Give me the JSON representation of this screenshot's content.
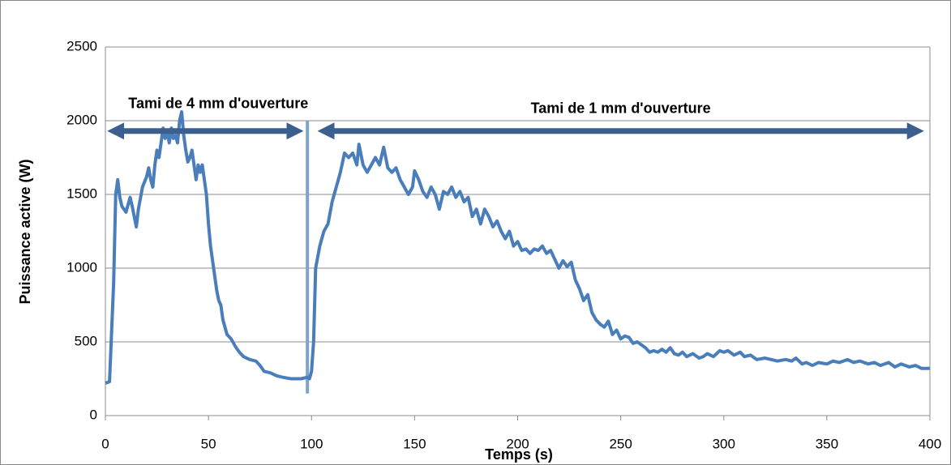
{
  "chart_data": {
    "type": "line",
    "xlabel": "Temps (s)",
    "ylabel": "Puissance active (W)",
    "xlim": [
      0,
      400
    ],
    "ylim": [
      0,
      2500
    ],
    "xticks": [
      0,
      50,
      100,
      150,
      200,
      250,
      300,
      350,
      400
    ],
    "yticks": [
      0,
      500,
      1000,
      1500,
      2000,
      2500
    ],
    "grid": true,
    "annotations": [
      {
        "text": "Tami de 4 mm d'ouverture",
        "x": [
          5,
          92
        ],
        "y": 1930,
        "color": "#3b5f8e"
      },
      {
        "text": "Tami de 1 mm d'ouverture",
        "x": [
          107,
          393
        ],
        "y": 1930,
        "color": "#3b5f8e"
      }
    ],
    "separator": {
      "x": 98,
      "y": [
        150,
        2000
      ],
      "color": "#7fa3cf"
    },
    "series": [
      {
        "name": "Puissance active",
        "color": "#4a7ebb",
        "x": [
          0,
          2,
          4,
          5,
          6,
          7,
          8,
          10,
          12,
          13,
          15,
          16,
          18,
          20,
          21,
          22,
          23,
          24,
          25,
          26,
          27,
          28,
          29,
          30,
          31,
          32,
          33,
          34,
          35,
          36,
          37,
          38,
          39,
          40,
          41,
          42,
          43,
          44,
          45,
          46,
          47,
          48,
          49,
          50,
          51,
          52,
          54,
          55,
          56,
          57,
          59,
          61,
          63,
          65,
          67,
          70,
          73,
          75,
          77,
          80,
          83,
          86,
          90,
          95,
          98,
          99,
          100,
          101,
          102,
          104,
          106,
          108,
          110,
          112,
          114,
          116,
          118,
          120,
          122,
          123,
          125,
          127,
          129,
          131,
          133,
          135,
          137,
          139,
          141,
          143,
          145,
          147,
          149,
          150,
          152,
          154,
          156,
          158,
          160,
          162,
          164,
          166,
          168,
          170,
          172,
          174,
          176,
          178,
          180,
          182,
          184,
          186,
          188,
          190,
          192,
          194,
          196,
          198,
          200,
          202,
          204,
          206,
          208,
          210,
          212,
          214,
          216,
          218,
          220,
          222,
          224,
          226,
          228,
          230,
          232,
          234,
          236,
          238,
          240,
          242,
          244,
          246,
          248,
          250,
          252,
          254,
          256,
          258,
          260,
          262,
          264,
          266,
          268,
          270,
          272,
          274,
          276,
          278,
          280,
          282,
          285,
          288,
          290,
          292,
          295,
          298,
          300,
          302,
          305,
          308,
          310,
          313,
          316,
          320,
          323,
          326,
          330,
          333,
          335,
          338,
          340,
          343,
          346,
          350,
          353,
          356,
          360,
          363,
          366,
          370,
          373,
          376,
          380,
          383,
          386,
          390,
          393,
          396,
          400
        ],
        "values": [
          220,
          230,
          900,
          1500,
          1600,
          1480,
          1420,
          1380,
          1480,
          1420,
          1280,
          1400,
          1550,
          1620,
          1680,
          1600,
          1550,
          1700,
          1800,
          1750,
          1850,
          1950,
          1880,
          1920,
          1850,
          1950,
          1880,
          1900,
          1850,
          2000,
          2060,
          1900,
          1800,
          1720,
          1750,
          1800,
          1700,
          1600,
          1700,
          1650,
          1700,
          1600,
          1500,
          1300,
          1150,
          1050,
          850,
          780,
          750,
          650,
          550,
          520,
          470,
          430,
          400,
          380,
          370,
          340,
          300,
          290,
          270,
          260,
          250,
          250,
          260,
          250,
          300,
          500,
          1000,
          1150,
          1250,
          1300,
          1450,
          1550,
          1650,
          1780,
          1750,
          1780,
          1700,
          1840,
          1700,
          1650,
          1700,
          1750,
          1700,
          1820,
          1680,
          1650,
          1680,
          1600,
          1550,
          1500,
          1550,
          1660,
          1600,
          1520,
          1480,
          1550,
          1500,
          1400,
          1520,
          1500,
          1550,
          1480,
          1520,
          1450,
          1480,
          1350,
          1400,
          1300,
          1400,
          1350,
          1280,
          1320,
          1250,
          1200,
          1250,
          1150,
          1180,
          1120,
          1130,
          1100,
          1130,
          1120,
          1150,
          1100,
          1120,
          1060,
          1000,
          1050,
          1010,
          1040,
          920,
          860,
          780,
          820,
          700,
          650,
          620,
          600,
          640,
          550,
          580,
          520,
          540,
          530,
          490,
          500,
          480,
          460,
          430,
          440,
          430,
          450,
          430,
          460,
          420,
          410,
          430,
          400,
          420,
          390,
          400,
          420,
          400,
          440,
          430,
          440,
          410,
          430,
          400,
          410,
          380,
          390,
          380,
          370,
          380,
          370,
          390,
          350,
          360,
          340,
          360,
          350,
          370,
          360,
          380,
          360,
          370,
          350,
          360,
          340,
          360,
          330,
          350,
          330,
          340,
          320,
          320
        ]
      }
    ]
  }
}
